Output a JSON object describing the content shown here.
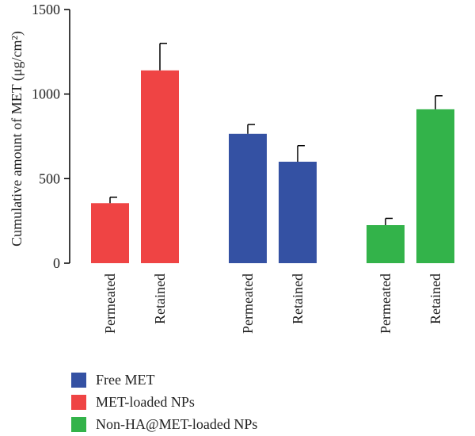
{
  "chart_data": {
    "type": "bar",
    "ylabel": "Cumulative amount of MET (μg/cm²)",
    "ylim": [
      0,
      1500
    ],
    "yticks": [
      0,
      500,
      1000,
      1500
    ],
    "groups": [
      {
        "series": "MET-loaded NPs",
        "color": "#ef4444",
        "bars": [
          {
            "label": "Permeated",
            "value": 355,
            "error": 35
          },
          {
            "label": "Retained",
            "value": 1140,
            "error": 160
          }
        ]
      },
      {
        "series": "Free MET",
        "color": "#3451a3",
        "bars": [
          {
            "label": "Permeated",
            "value": 765,
            "error": 55
          },
          {
            "label": "Retained",
            "value": 600,
            "error": 95
          }
        ]
      },
      {
        "series": "Non-HA@MET-loaded NPs",
        "color": "#33b34a",
        "bars": [
          {
            "label": "Permeated",
            "value": 225,
            "error": 40
          },
          {
            "label": "Retained",
            "value": 910,
            "error": 80
          }
        ]
      }
    ],
    "legend": [
      {
        "label": "Free MET",
        "color": "#3451a3"
      },
      {
        "label": "MET-loaded NPs",
        "color": "#ef4444"
      },
      {
        "label": "Non-HA@MET-loaded NPs",
        "color": "#33b34a"
      }
    ],
    "legend_position": "bottom-left"
  }
}
